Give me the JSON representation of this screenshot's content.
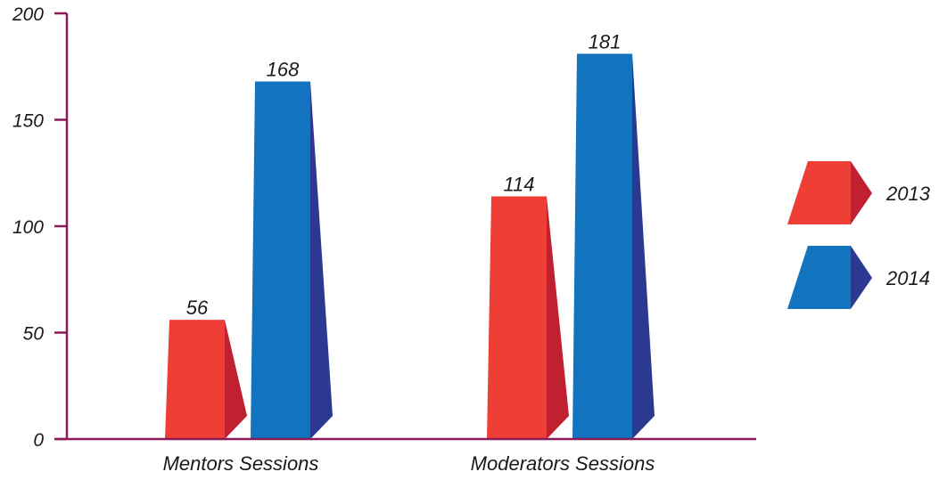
{
  "chart_data": {
    "type": "bar",
    "title": "",
    "xlabel": "",
    "ylabel": "",
    "categories": [
      "Mentors Sessions",
      "Moderators Sessions"
    ],
    "series": [
      {
        "name": "2013",
        "values": [
          56,
          114
        ],
        "color": "#ee3e36",
        "side_color": "#c0202f"
      },
      {
        "name": "2014",
        "values": [
          168,
          181
        ],
        "color": "#1273bf",
        "side_color": "#2b3990"
      }
    ],
    "ylim": [
      0,
      200
    ],
    "yticks": [
      "0",
      "50",
      "100",
      "150",
      "200"
    ],
    "data_labels": [
      [
        "56",
        "114"
      ],
      [
        "168",
        "181"
      ]
    ],
    "grid": false,
    "legend_position": "right",
    "axis_color": "#8b1a5a"
  }
}
